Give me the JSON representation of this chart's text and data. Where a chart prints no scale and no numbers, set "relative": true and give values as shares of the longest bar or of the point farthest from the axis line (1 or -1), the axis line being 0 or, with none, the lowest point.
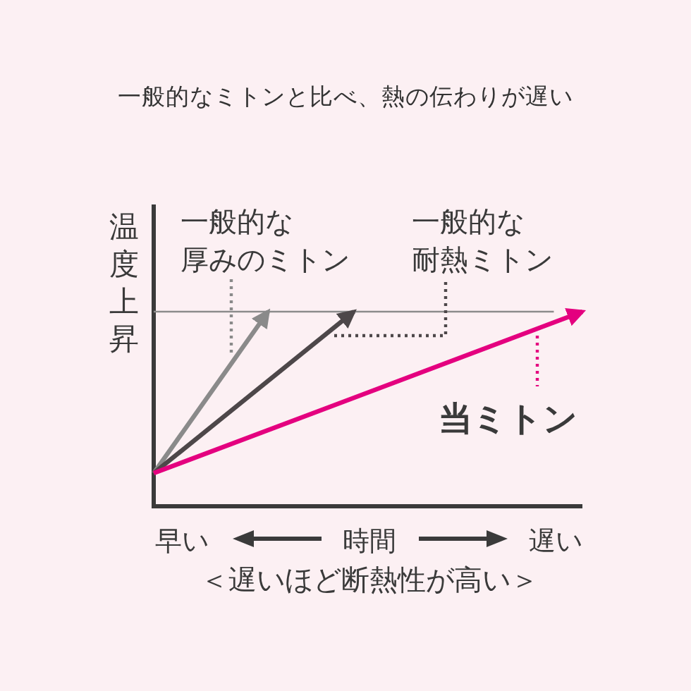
{
  "chart_data": {
    "type": "line",
    "relative": true,
    "title": "一般的なミトンと比べ、熱の伝わりが遅い",
    "xlabel": "時間",
    "ylabel": "温度上昇",
    "annotations": [
      "早い",
      "遅い",
      "＜遅いほど断熱性が高い＞"
    ],
    "categories": [
      null,
      null,
      null,
      null,
      null,
      null,
      null,
      null,
      null,
      null,
      null,
      null,
      null,
      null,
      null,
      null
    ],
    "series": [
      {
        "name": "一般的な厚みのミトン",
        "color": "#8a8a8a",
        "values": [
          0.17,
          null,
          null,
          null,
          1,
          null,
          null,
          null,
          null,
          null,
          null,
          null,
          null,
          null,
          null,
          null
        ]
      },
      {
        "name": "一般的な耐熱ミトン",
        "color": "#4d4749",
        "values": [
          0.17,
          null,
          null,
          null,
          null,
          null,
          null,
          1,
          null,
          null,
          null,
          null,
          null,
          null,
          null,
          null
        ]
      },
      {
        "name": "当ミトン",
        "color": "#e4007f",
        "values": [
          0.17,
          null,
          null,
          null,
          null,
          null,
          null,
          null,
          null,
          null,
          null,
          null,
          null,
          null,
          null,
          1
        ]
      },
      {
        "color": "#8c8c8c",
        "marker": "none",
        "values": [
          1,
          1,
          1,
          1,
          1,
          1,
          1,
          1,
          1,
          1,
          1,
          1,
          1,
          1,
          1,
          null
        ]
      }
    ]
  }
}
